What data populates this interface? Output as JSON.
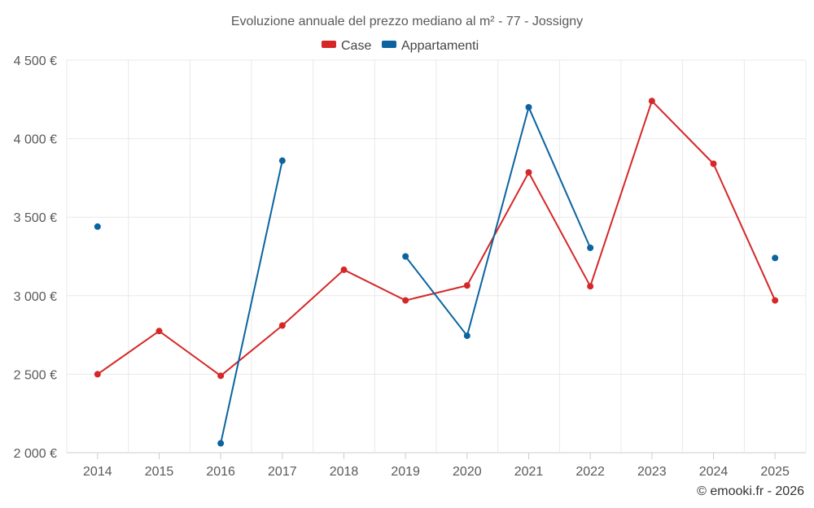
{
  "chart_data": {
    "type": "line",
    "title": "Evoluzione annuale del prezzo mediano al m² - 77 - Jossigny",
    "categories": [
      "2014",
      "2015",
      "2016",
      "2017",
      "2018",
      "2019",
      "2020",
      "2021",
      "2022",
      "2023",
      "2024",
      "2025"
    ],
    "ylim": [
      2000,
      4500
    ],
    "yticks": [
      2000,
      2500,
      3000,
      3500,
      4000,
      4500
    ],
    "ytick_labels": [
      "2 000 €",
      "2 500 €",
      "3 000 €",
      "3 500 €",
      "4 000 €",
      "4 500 €"
    ],
    "grid": true,
    "legend_position": "top-center",
    "series": [
      {
        "name": "Case",
        "color": "#d62728",
        "values": [
          2500,
          2775,
          2490,
          2810,
          3165,
          2970,
          3065,
          3785,
          3060,
          4240,
          3840,
          2970
        ]
      },
      {
        "name": "Appartamenti",
        "color": "#0b64a0",
        "values": [
          3440,
          null,
          2060,
          3860,
          null,
          3250,
          2745,
          4200,
          3305,
          null,
          null,
          3240
        ]
      }
    ]
  },
  "credit": "© emooki.fr - 2026"
}
